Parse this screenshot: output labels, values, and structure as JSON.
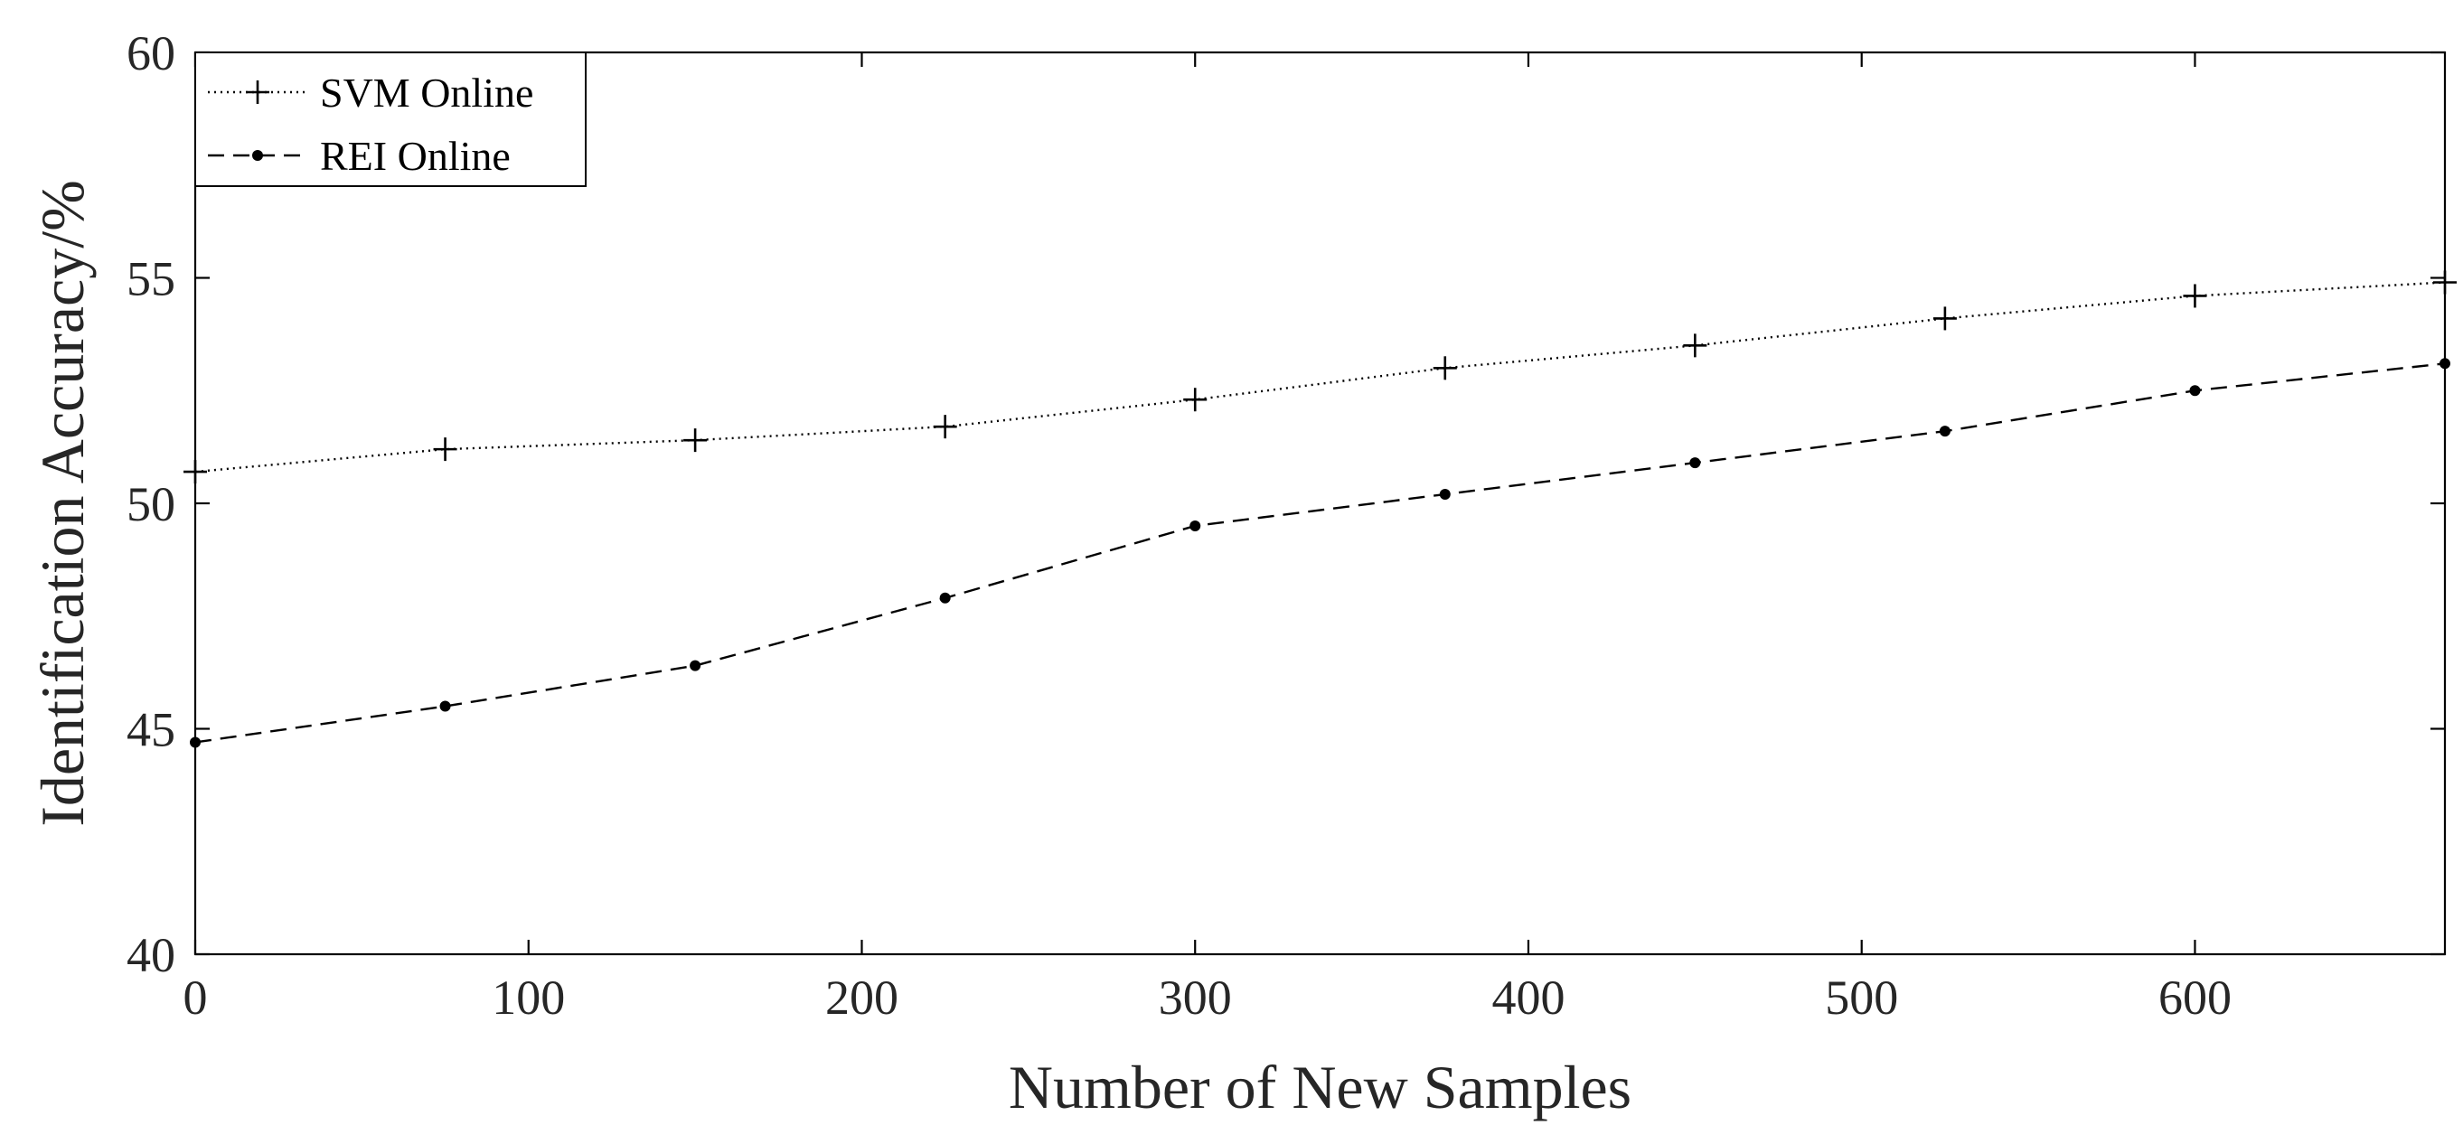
{
  "chart_data": {
    "type": "line",
    "title": "",
    "xlabel": "Number of New Samples",
    "ylabel": "Identification Accuracy/%",
    "xlim": [
      0,
      675
    ],
    "ylim": [
      40,
      60
    ],
    "xticks": [
      0,
      100,
      200,
      300,
      400,
      500,
      600
    ],
    "yticks": [
      40,
      45,
      50,
      55,
      60
    ],
    "x": [
      0,
      75,
      150,
      225,
      300,
      375,
      450,
      525,
      600,
      675
    ],
    "series": [
      {
        "name": "SVM Online",
        "marker": "plus",
        "linestyle": "dotted",
        "color": "#000000",
        "values": [
          50.7,
          51.2,
          51.4,
          51.7,
          52.3,
          53.0,
          53.5,
          54.1,
          54.6,
          54.9
        ]
      },
      {
        "name": "REI Online",
        "marker": "dot",
        "linestyle": "dashed",
        "color": "#000000",
        "values": [
          44.7,
          45.5,
          46.4,
          47.9,
          49.5,
          50.2,
          50.9,
          51.6,
          52.5,
          53.1
        ]
      }
    ],
    "grid": false,
    "legend": "top-left"
  }
}
